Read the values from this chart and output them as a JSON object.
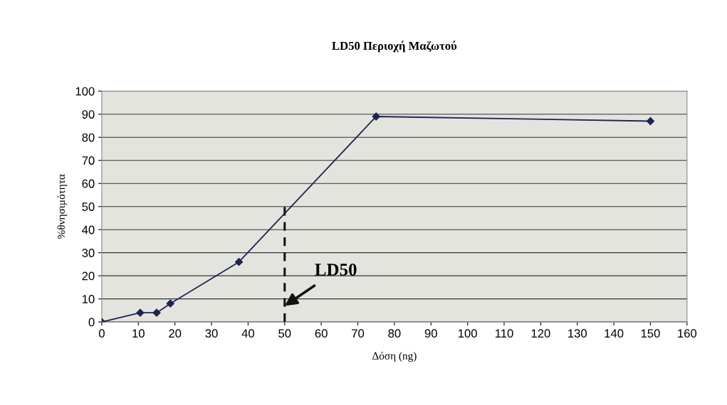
{
  "chart_data": {
    "type": "line",
    "title": "LD50 Περιοχή Μαζωτού",
    "xlabel": "Δόση (ng)",
    "ylabel": "%θνησιμότητα",
    "series": [
      {
        "color": "#1c2550",
        "x": [
          0,
          10.5,
          15,
          18.75,
          37.5,
          75,
          150
        ],
        "values": [
          0,
          4,
          4,
          8,
          26,
          89,
          87
        ],
        "marker": "diamond",
        "line_style": "solid"
      },
      {
        "color": "#111111",
        "x": [
          50,
          50
        ],
        "values": [
          0,
          50
        ],
        "marker": "none",
        "line_style": "dashed"
      }
    ],
    "annotations": [
      {
        "text": "LD50",
        "x": 50,
        "y": 7
      }
    ],
    "xlim": [
      0,
      160
    ],
    "xticks": [
      0,
      10,
      20,
      30,
      40,
      50,
      60,
      70,
      80,
      90,
      100,
      110,
      120,
      130,
      140,
      150,
      160
    ],
    "ylim": [
      0,
      100
    ],
    "yticks": [
      0,
      10,
      20,
      30,
      40,
      50,
      60,
      70,
      80,
      90,
      100
    ],
    "grid": "y",
    "legend": false
  }
}
